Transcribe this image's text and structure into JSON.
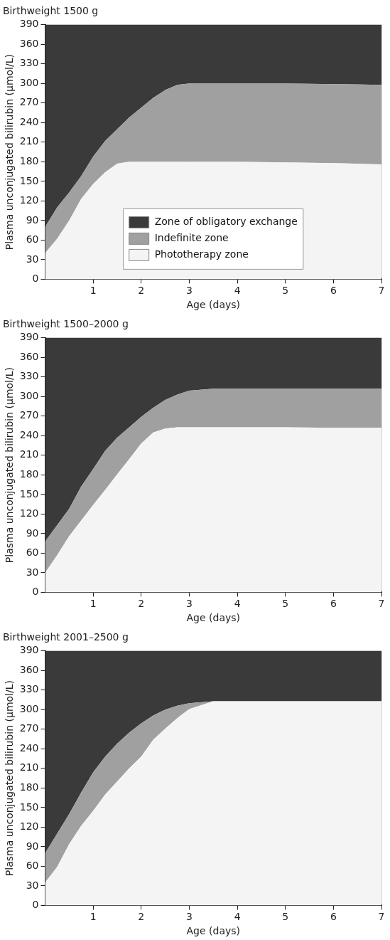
{
  "chart_data": [
    {
      "type": "area",
      "title": "Birthweight 1500 g",
      "xlabel": "Age (days)",
      "ylabel": "Plasma unconjugated bilirubin (μmol/L)",
      "stacked": true,
      "x": [
        0,
        0.25,
        0.5,
        0.75,
        1,
        1.25,
        1.5,
        1.75,
        2,
        2.25,
        2.5,
        2.75,
        3,
        3.5,
        4,
        5,
        6,
        7
      ],
      "series": [
        {
          "name": "Phototherapy zone",
          "color": "#f4f4f4",
          "values": [
            40,
            62,
            90,
            123,
            146,
            164,
            177,
            180,
            180,
            180,
            180,
            180,
            180,
            180,
            180,
            179,
            178,
            176
          ]
        },
        {
          "name": "Indefinite zone",
          "color": "#a0a0a0",
          "values": [
            40,
            48,
            43,
            35,
            42,
            48,
            53,
            68,
            83,
            98,
            110,
            118,
            120,
            120,
            120,
            121,
            121,
            122
          ]
        },
        {
          "name": "Zone of obligatory exchange",
          "color": "#3a3a3a",
          "values": [
            310,
            280,
            257,
            232,
            202,
            178,
            160,
            142,
            127,
            112,
            100,
            92,
            90,
            90,
            90,
            90,
            91,
            92
          ]
        }
      ],
      "xlim": [
        0,
        7
      ],
      "xticks": [
        1,
        2,
        3,
        4,
        5,
        6,
        7
      ],
      "ylim": [
        0,
        390
      ],
      "yticks": [
        0,
        30,
        60,
        90,
        120,
        150,
        180,
        210,
        240,
        270,
        300,
        330,
        360,
        390
      ],
      "grid": true,
      "legend": "bottom"
    },
    {
      "type": "area",
      "title": "Birthweight 1500–2000 g",
      "xlabel": "Age (days)",
      "ylabel": "Plasma unconjugated bilirubin (μmol/L)",
      "stacked": true,
      "x": [
        0,
        0.25,
        0.5,
        0.75,
        1,
        1.25,
        1.5,
        1.75,
        2,
        2.25,
        2.5,
        2.75,
        3,
        3.5,
        4,
        5,
        6,
        7
      ],
      "series": [
        {
          "color": "#f4f4f4",
          "values": [
            30,
            57,
            86,
            110,
            134,
            157,
            181,
            204,
            228,
            245,
            251,
            253,
            253,
            253,
            253,
            253,
            252,
            252
          ]
        },
        {
          "color": "#a0a0a0",
          "values": [
            48,
            46,
            42,
            52,
            55,
            60,
            56,
            49,
            41,
            38,
            44,
            50,
            56,
            59,
            59,
            59,
            60,
            60
          ]
        },
        {
          "color": "#3a3a3a",
          "values": [
            312,
            287,
            262,
            228,
            201,
            173,
            153,
            137,
            121,
            107,
            95,
            87,
            81,
            78,
            78,
            78,
            78,
            78
          ]
        }
      ],
      "xlim": [
        0,
        7
      ],
      "xticks": [
        1,
        2,
        3,
        4,
        5,
        6,
        7
      ],
      "ylim": [
        0,
        390
      ],
      "yticks": [
        0,
        30,
        60,
        90,
        120,
        150,
        180,
        210,
        240,
        270,
        300,
        330,
        360,
        390
      ],
      "grid": true
    },
    {
      "type": "area",
      "title": "Birthweight 2001–2500 g",
      "xlabel": "Age (days)",
      "ylabel": "Plasma unconjugated bilirubin (μmol/L)",
      "stacked": true,
      "x": [
        0,
        0.25,
        0.5,
        0.75,
        1,
        1.25,
        1.5,
        1.75,
        2,
        2.25,
        2.5,
        2.75,
        3,
        3.5,
        4,
        5,
        6,
        7
      ],
      "series": [
        {
          "color": "#f4f4f4",
          "values": [
            35,
            59,
            94,
            122,
            145,
            170,
            190,
            210,
            228,
            254,
            271,
            287,
            301,
            313,
            313,
            313,
            313,
            313
          ]
        },
        {
          "color": "#a0a0a0",
          "values": [
            45,
            51,
            46,
            51,
            59,
            58,
            58,
            55,
            51,
            37,
            29,
            19,
            9,
            0,
            0,
            0,
            0,
            0
          ]
        },
        {
          "color": "#3a3a3a",
          "values": [
            310,
            280,
            250,
            217,
            186,
            162,
            142,
            125,
            111,
            99,
            90,
            84,
            80,
            77,
            77,
            77,
            77,
            77
          ]
        }
      ],
      "xlim": [
        0,
        7
      ],
      "xticks": [
        1,
        2,
        3,
        4,
        5,
        6,
        7
      ],
      "ylim": [
        0,
        390
      ],
      "yticks": [
        0,
        30,
        60,
        90,
        120,
        150,
        180,
        210,
        240,
        270,
        300,
        330,
        360,
        390
      ],
      "grid": true
    }
  ]
}
